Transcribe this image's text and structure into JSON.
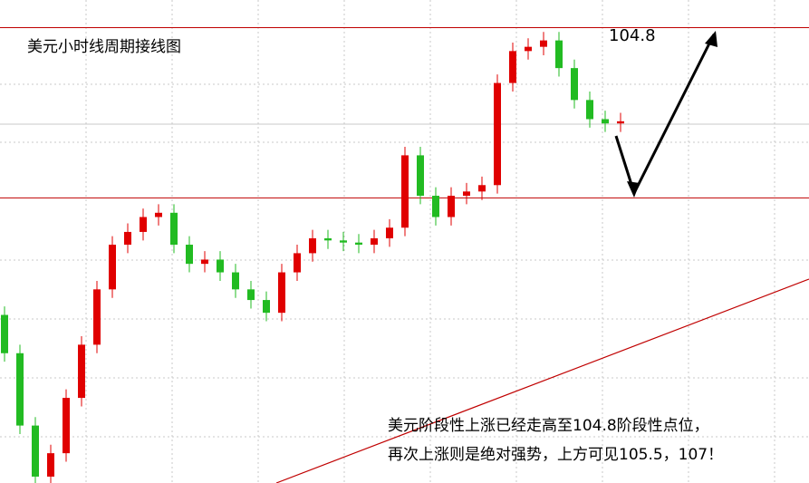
{
  "chart_data": {
    "type": "candlestick",
    "title": "美元小时线周期接线图",
    "opens": [
      103.45,
      103.27,
      102.93,
      102.69,
      102.8,
      103.06,
      103.31,
      103.57,
      103.78,
      103.84,
      103.91,
      103.93,
      103.78,
      103.69,
      103.71,
      103.65,
      103.57,
      103.52,
      103.46,
      103.65,
      103.74,
      103.81,
      103.8,
      103.79,
      103.78,
      103.81,
      103.86,
      104.2,
      104.01,
      103.91,
      104.01,
      104.03,
      104.06,
      104.54,
      104.69,
      104.71,
      104.74,
      104.61,
      104.46,
      104.37,
      104.35
    ],
    "highs": [
      103.49,
      103.31,
      102.97,
      102.84,
      103.1,
      103.35,
      103.61,
      103.82,
      103.88,
      103.95,
      103.97,
      103.97,
      103.82,
      103.75,
      103.75,
      103.69,
      103.61,
      103.56,
      103.69,
      103.78,
      103.85,
      103.85,
      103.84,
      103.83,
      103.85,
      103.9,
      104.24,
      104.24,
      104.05,
      104.05,
      104.07,
      104.1,
      104.58,
      104.73,
      104.75,
      104.78,
      104.78,
      104.65,
      104.5,
      104.41,
      104.4
    ],
    "lows": [
      103.23,
      102.89,
      102.65,
      102.65,
      102.76,
      103.02,
      103.27,
      103.53,
      103.74,
      103.8,
      103.87,
      103.74,
      103.65,
      103.65,
      103.61,
      103.53,
      103.48,
      103.42,
      103.42,
      103.61,
      103.7,
      103.76,
      103.75,
      103.74,
      103.74,
      103.77,
      103.82,
      103.97,
      103.87,
      103.87,
      103.97,
      103.99,
      104.02,
      104.5,
      104.65,
      104.67,
      104.57,
      104.42,
      104.33,
      104.31,
      104.31
    ],
    "closes": [
      103.27,
      102.93,
      102.69,
      102.8,
      103.06,
      103.31,
      103.57,
      103.78,
      103.84,
      103.91,
      103.93,
      103.78,
      103.69,
      103.71,
      103.65,
      103.57,
      103.52,
      103.46,
      103.65,
      103.74,
      103.81,
      103.8,
      103.79,
      103.78,
      103.81,
      103.86,
      104.2,
      104.01,
      103.91,
      104.01,
      104.03,
      104.06,
      104.54,
      104.69,
      104.71,
      104.74,
      104.61,
      104.46,
      104.37,
      104.35,
      104.36
    ],
    "up_color": "#e00000",
    "down_color": "#22bb22",
    "ylim": [
      102.66,
      104.93
    ],
    "levels": [
      104.8,
      104.0
    ],
    "level_color": "#c00000",
    "level_label": "104.8",
    "notes": [
      "美元阶段性上涨已经走高至104.8阶段性点位，",
      "再次上涨则是绝对强势，上方可见105.5，107！"
    ]
  }
}
